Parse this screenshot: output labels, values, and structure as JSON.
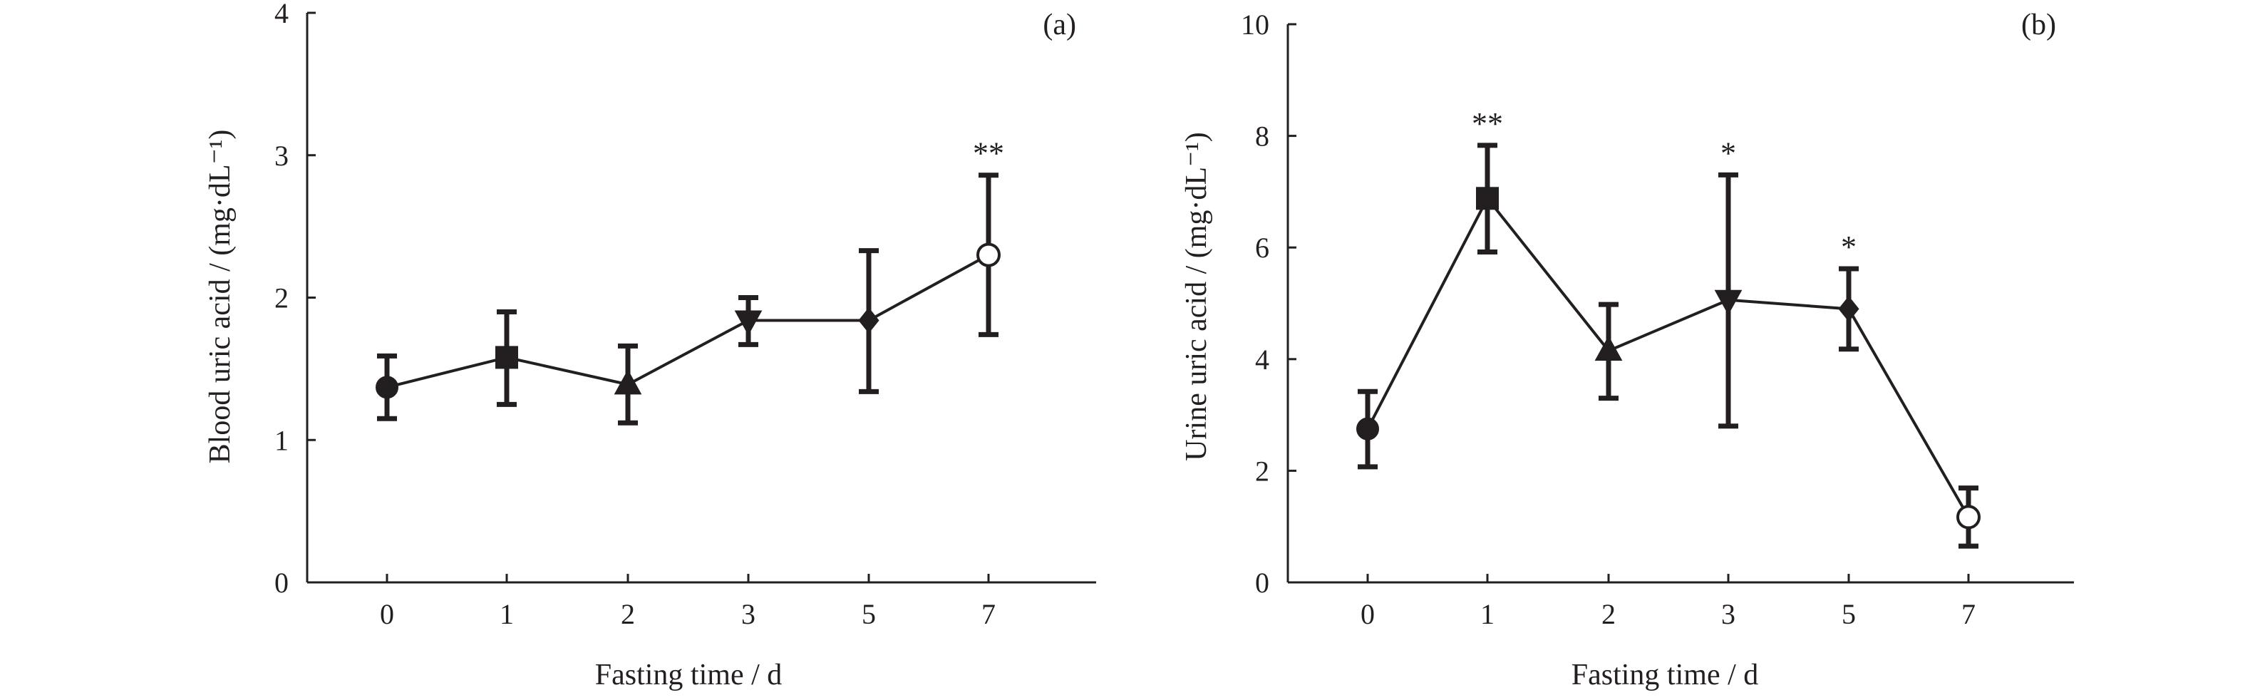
{
  "chart_data": [
    {
      "type": "line",
      "panel_label": "(a)",
      "xlabel": "Fasting time / d",
      "ylabel": "Blood uric acid / (mg·dL⁻¹)",
      "categories": [
        "0",
        "1",
        "2",
        "3",
        "5",
        "7"
      ],
      "values": [
        1.37,
        1.58,
        1.39,
        1.84,
        1.84,
        2.3
      ],
      "error_low": [
        1.15,
        1.25,
        1.12,
        1.67,
        1.34,
        1.74
      ],
      "error_high": [
        1.59,
        1.9,
        1.66,
        2.0,
        2.33,
        2.86
      ],
      "markers": [
        "filled-circle",
        "filled-square",
        "filled-triangle-up",
        "filled-triangle-down",
        "filled-diamond",
        "open-circle"
      ],
      "annotations": [
        "",
        "",
        "",
        "",
        "",
        "**"
      ],
      "ylim": [
        0,
        4
      ],
      "yticks": [
        "0",
        "1",
        "2",
        "3",
        "4"
      ],
      "grid": false
    },
    {
      "type": "line",
      "panel_label": "(b)",
      "xlabel": "Fasting time / d",
      "ylabel": "Urine uric acid / (mg·dL⁻¹)",
      "categories": [
        "0",
        "1",
        "2",
        "3",
        "5",
        "7"
      ],
      "values": [
        2.75,
        6.88,
        4.15,
        5.06,
        4.9,
        1.17
      ],
      "error_low": [
        2.07,
        5.92,
        3.3,
        2.8,
        4.18,
        0.65
      ],
      "error_high": [
        3.42,
        7.83,
        4.98,
        7.3,
        5.62,
        1.69
      ],
      "markers": [
        "filled-circle",
        "filled-square",
        "filled-triangle-up",
        "filled-triangle-down",
        "filled-diamond",
        "open-circle"
      ],
      "annotations": [
        "",
        "**",
        "",
        "*",
        "*",
        ""
      ],
      "ylim": [
        0,
        10
      ],
      "yticks": [
        "0",
        "2",
        "4",
        "6",
        "8",
        "10"
      ],
      "grid": false
    }
  ]
}
